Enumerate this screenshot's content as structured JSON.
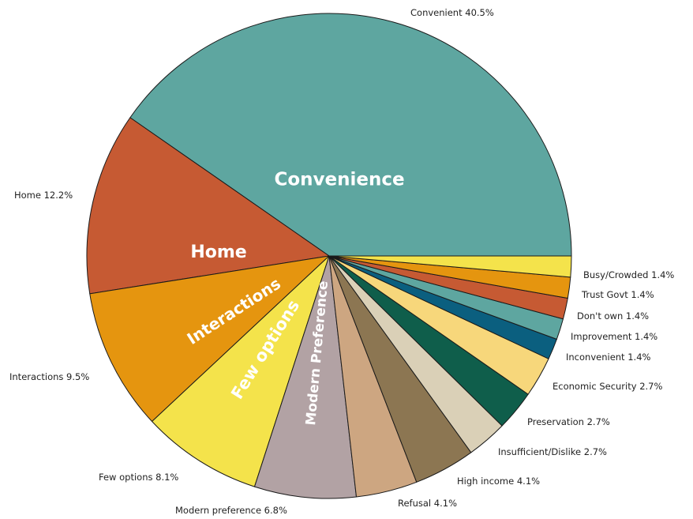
{
  "chart_data": {
    "type": "pie",
    "start_angle_deg": 0,
    "direction": "counterclockwise",
    "slices": [
      {
        "label": "Convenient",
        "value": 40.5,
        "display": "Convenient  40.5%",
        "color": "#5ea6a0"
      },
      {
        "label": "Home",
        "value": 12.2,
        "display": "Home  12.2%",
        "color": "#c65a33"
      },
      {
        "label": "Interactions",
        "value": 9.5,
        "display": "Interactions  9.5%",
        "color": "#e5950f"
      },
      {
        "label": "Few options",
        "value": 8.1,
        "display": "Few options  8.1%",
        "color": "#f4e34b"
      },
      {
        "label": "Modern preference",
        "value": 6.8,
        "display": "Modern preference  6.8%",
        "color": "#b2a2a4"
      },
      {
        "label": "Refusal",
        "value": 4.1,
        "display": "Refusal  4.1%",
        "color": "#cda681"
      },
      {
        "label": "High income",
        "value": 4.1,
        "display": "High income  4.1%",
        "color": "#8c7652"
      },
      {
        "label": "Insufficient/Dislike",
        "value": 2.7,
        "display": "Insufficient/Dislike  2.7%",
        "color": "#dad0b7"
      },
      {
        "label": "Preservation",
        "value": 2.7,
        "display": "Preservation  2.7%",
        "color": "#0f5e4b"
      },
      {
        "label": "Economic Security",
        "value": 2.7,
        "display": "Economic Security  2.7%",
        "color": "#f7d77b"
      },
      {
        "label": "Inconvenient",
        "value": 1.4,
        "display": "Inconvenient  1.4%",
        "color": "#0b5f7f"
      },
      {
        "label": "Improvement",
        "value": 1.4,
        "display": "Improvement  1.4%",
        "color": "#5ea6a0"
      },
      {
        "label": "Don't own",
        "value": 1.4,
        "display": "Don't own  1.4%",
        "color": "#c65a33"
      },
      {
        "label": "Trust Govt",
        "value": 1.4,
        "display": "Trust Govt  1.4%",
        "color": "#e5950f"
      },
      {
        "label": "Busy/Crowded",
        "value": 1.4,
        "display": "Busy/Crowded  1.4%",
        "color": "#f4e34b"
      }
    ],
    "annotations": [
      {
        "text": "Convenience",
        "slice": "Convenient",
        "color": "#ffffff"
      },
      {
        "text": "Home",
        "slice": "Home",
        "color": "#ffffff"
      },
      {
        "text": "Interactions",
        "slice": "Interactions",
        "color": "#ffffff"
      },
      {
        "text": "Few options",
        "slice": "Few options",
        "color": "#111111"
      },
      {
        "text": "Modern Preference",
        "slice": "Modern preference",
        "color": "#111111"
      }
    ]
  }
}
